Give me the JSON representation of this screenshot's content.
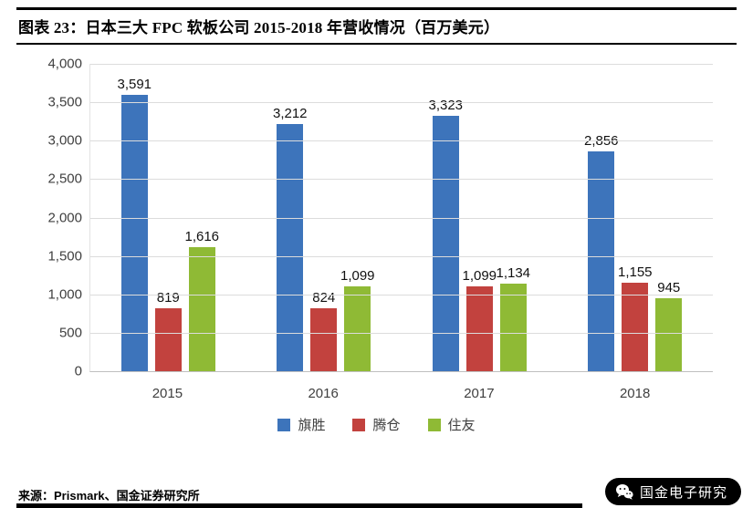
{
  "header": {
    "title": "图表 23：日本三大 FPC 软板公司 2015-2018 年营收情况（百万美元）"
  },
  "chart_data": {
    "type": "bar",
    "title": "日本三大 FPC 软板公司 2015-2018 年营收情况（百万美元）",
    "categories": [
      "2015",
      "2016",
      "2017",
      "2018"
    ],
    "series": [
      {
        "name": "旗胜",
        "color": "#3D74BB",
        "values": [
          3591,
          3212,
          3323,
          2856
        ]
      },
      {
        "name": "腾仓",
        "color": "#C2423E",
        "values": [
          819,
          824,
          1099,
          1155
        ]
      },
      {
        "name": "住友",
        "color": "#8FBA35",
        "values": [
          1616,
          1099,
          1134,
          945
        ]
      }
    ],
    "xlabel": "",
    "ylabel": "",
    "ylim": [
      0,
      4000
    ],
    "ytick_step": 500,
    "yticks": [
      "4,000",
      "3,500",
      "3,000",
      "2,500",
      "2,000",
      "1,500",
      "1,000",
      "500",
      "0"
    ],
    "grid": true,
    "legend_position": "bottom"
  },
  "footer": {
    "source": "来源：Prismark、国金证券研究所",
    "badge": "国金电子研究"
  }
}
